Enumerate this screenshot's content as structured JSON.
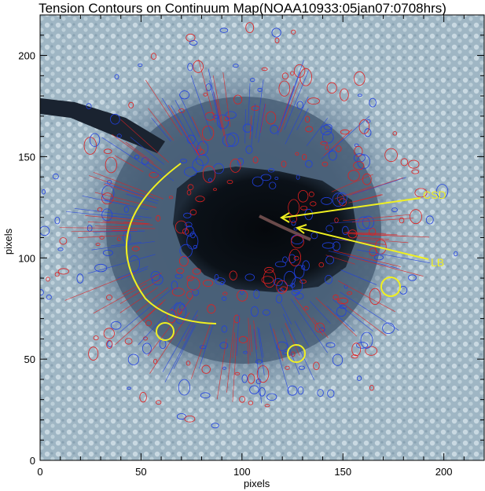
{
  "title": "Tension Contours on Continuum Map(NOAA10933:05jan07:0708hrs)",
  "xlabel": "pixels",
  "ylabel": "pixels",
  "x_ticks": [
    "0",
    "50",
    "100",
    "150",
    "200"
  ],
  "y_ticks": [
    "0",
    "50",
    "100",
    "150",
    "200"
  ],
  "annotations": {
    "csd": "CSD",
    "lb": "LB"
  },
  "colors": {
    "contour_a": "#e02020",
    "contour_b": "#2040e0",
    "annotation": "#f0f020"
  }
}
